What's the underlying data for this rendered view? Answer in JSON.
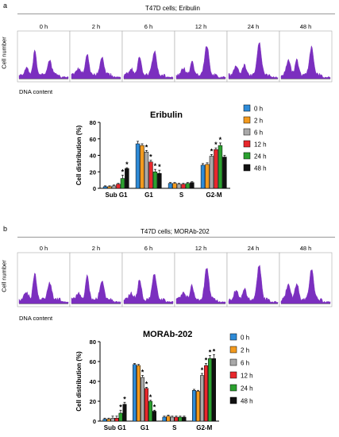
{
  "panels": [
    {
      "letter": "a",
      "figure_title": "T47D cells; Eribulin",
      "histogram_ylabel": "Cell number",
      "histogram_xlabel": "DNA content",
      "times": [
        "0 h",
        "2 h",
        "6 h",
        "12 h",
        "24 h",
        "48 h"
      ]
    },
    {
      "letter": "b",
      "figure_title": "T47D cells; MORAb-202",
      "histogram_ylabel": "Cell number",
      "histogram_xlabel": "DNA content",
      "times": [
        "0 h",
        "2 h",
        "6 h",
        "12 h",
        "24 h",
        "48 h"
      ]
    }
  ],
  "colors": {
    "0 h": "#2E8BD8",
    "2 h": "#F39A1E",
    "6 h": "#A9A9A9",
    "12 h": "#E8272C",
    "24 h": "#2BA12F",
    "48 h": "#111111",
    "histogram_fill": "#7B2FBF"
  },
  "chart_data": [
    {
      "type": "bar",
      "title": "Eribulin",
      "ylabel": "Cell distribution (%)",
      "xlabel": "",
      "ylim": [
        0,
        80
      ],
      "yticks": [
        0,
        20,
        40,
        60,
        80
      ],
      "categories": [
        "Sub G1",
        "G1",
        "S",
        "G2-M"
      ],
      "series": [
        {
          "name": "0 h",
          "values": [
            2,
            54,
            6,
            28
          ],
          "errors": [
            1,
            3,
            1,
            2
          ],
          "sig": [
            false,
            false,
            false,
            false
          ]
        },
        {
          "name": "2 h",
          "values": [
            2,
            52,
            6,
            29
          ],
          "errors": [
            1,
            2,
            1,
            2
          ],
          "sig": [
            false,
            false,
            false,
            false
          ]
        },
        {
          "name": "6 h",
          "values": [
            3,
            44,
            5,
            39
          ],
          "errors": [
            1,
            2,
            1,
            2
          ],
          "sig": [
            false,
            true,
            false,
            true
          ]
        },
        {
          "name": "12 h",
          "values": [
            5,
            32,
            5,
            47
          ],
          "errors": [
            1,
            2,
            1,
            2
          ],
          "sig": [
            false,
            true,
            false,
            true
          ]
        },
        {
          "name": "24 h",
          "values": [
            12,
            20,
            6,
            52
          ],
          "errors": [
            4,
            3,
            1,
            3
          ],
          "sig": [
            true,
            true,
            false,
            true
          ]
        },
        {
          "name": "48 h",
          "values": [
            24,
            18,
            7,
            38
          ],
          "errors": [
            1,
            4,
            1,
            2
          ],
          "sig": [
            true,
            true,
            false,
            false
          ]
        }
      ]
    },
    {
      "type": "bar",
      "title": "MORAb-202",
      "ylabel": "Cell distribution (%)",
      "xlabel": "",
      "ylim": [
        0,
        80
      ],
      "yticks": [
        0,
        20,
        40,
        60,
        80
      ],
      "categories": [
        "Sub G1",
        "G1",
        "S",
        "G2-M"
      ],
      "series": [
        {
          "name": "0 h",
          "values": [
            2,
            57,
            4,
            31
          ],
          "errors": [
            1,
            1,
            1,
            1
          ],
          "sig": [
            false,
            false,
            false,
            false
          ]
        },
        {
          "name": "2 h",
          "values": [
            2,
            56,
            5,
            30
          ],
          "errors": [
            1,
            1,
            1,
            1
          ],
          "sig": [
            false,
            false,
            false,
            false
          ]
        },
        {
          "name": "6 h",
          "values": [
            3,
            44,
            4,
            46
          ],
          "errors": [
            2,
            2,
            1,
            2
          ],
          "sig": [
            false,
            true,
            false,
            true
          ]
        },
        {
          "name": "12 h",
          "values": [
            3,
            33,
            4,
            56
          ],
          "errors": [
            2,
            1,
            1,
            2
          ],
          "sig": [
            false,
            true,
            false,
            true
          ]
        },
        {
          "name": "24 h",
          "values": [
            8,
            20,
            4,
            63
          ],
          "errors": [
            3,
            1,
            1,
            3
          ],
          "sig": [
            true,
            true,
            false,
            true
          ]
        },
        {
          "name": "48 h",
          "values": [
            17,
            10,
            4,
            63
          ],
          "errors": [
            2,
            1,
            1,
            4
          ],
          "sig": [
            true,
            true,
            false,
            true
          ]
        }
      ]
    }
  ]
}
